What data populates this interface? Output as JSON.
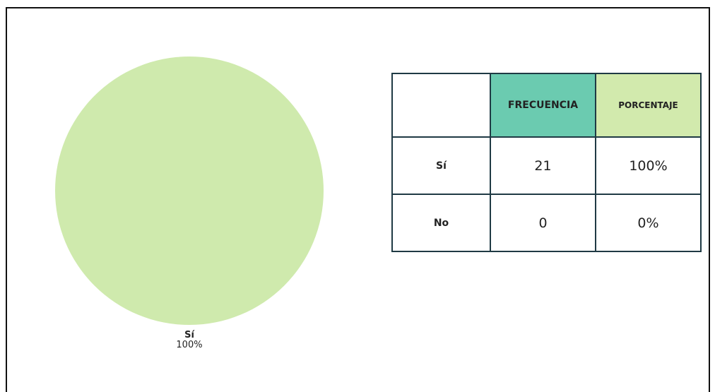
{
  "chart_data": {
    "type": "pie",
    "slices": [
      {
        "label": "Sí",
        "value": 100,
        "display": "100%",
        "color": "#cfeaad"
      }
    ]
  },
  "table": {
    "columns": [
      "",
      "FRECUENCIA",
      "PORCENTAJE"
    ],
    "column_colors": [
      "#ffffff",
      "#6bcbb0",
      "#d2eaad"
    ],
    "rows": [
      {
        "label": "Sí",
        "frecuencia": "21",
        "porcentaje": "100%"
      },
      {
        "label": "No",
        "frecuencia": "0",
        "porcentaje": "0%"
      }
    ]
  }
}
